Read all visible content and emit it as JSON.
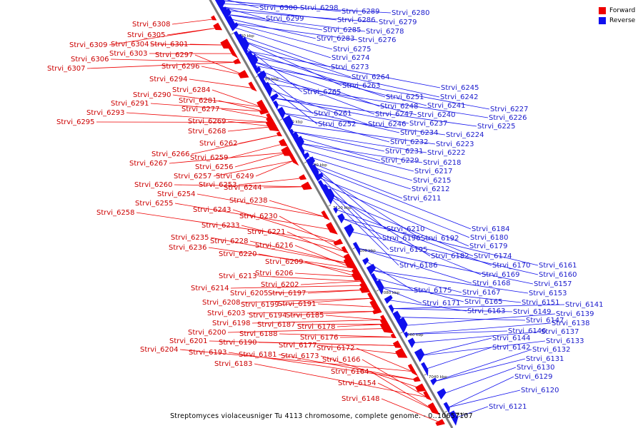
{
  "caption": "Streptomyces violaceusniger Tu 4113 chromosome, complete genome. - 0..10657107",
  "legend": [
    {
      "label": "Forward",
      "color": "#ee0000"
    },
    {
      "label": "Reverse",
      "color": "#1010ee"
    }
  ],
  "colors": {
    "forward": "#ee0000",
    "reverse": "#1010ee",
    "axis": "#7a7a7a"
  },
  "axis_ticks": [
    {
      "label": "7200 kbp",
      "pos": 0.085
    },
    {
      "label": "7180 kbp",
      "pos": 0.185
    },
    {
      "label": "7160 kbp",
      "pos": 0.285
    },
    {
      "label": "7140 kbp",
      "pos": 0.385
    },
    {
      "label": "7120 kbp",
      "pos": 0.485
    },
    {
      "label": "7100 kbp",
      "pos": 0.585
    },
    {
      "label": "7080 kbp",
      "pos": 0.683
    },
    {
      "label": "7060 kbp",
      "pos": 0.781
    },
    {
      "label": "7040 kbp",
      "pos": 0.879
    },
    {
      "label": "7020 kbp",
      "pos": 0.965
    }
  ],
  "forward_genes": [
    "Strvi_6308",
    "Strvi_6305",
    "Strvi_6309",
    "Strvi_6304",
    "Strvi_6301",
    "Strvi_6303",
    "Strvi_6306",
    "Strvi_6307",
    "Strvi_6297",
    "Strvi_6296",
    "Strvi_6294",
    "Strvi_6284",
    "Strvi_6290",
    "Strvi_6281",
    "Strvi_6291",
    "Strvi_6277",
    "Strvi_6293",
    "Strvi_6295",
    "Strvi_6269",
    "Strvi_6268",
    "Strvi_6262",
    "Strvi_6266",
    "Strvi_6259",
    "Strvi_6267",
    "Strvi_6256",
    "Strvi_6257",
    "Strvi_6249",
    "Strvi_6253",
    "Strvi_6260",
    "Strvi_6244",
    "Strvi_6254",
    "Strvi_6238",
    "Strvi_6255",
    "Strvi_6243",
    "Strvi_6258",
    "Strvi_6230",
    "Strvi_6233",
    "Strvi_6221",
    "Strvi_6235",
    "Strvi_6228",
    "Strvi_6216",
    "Strvi_6236",
    "Strvi_6220",
    "Strvi_6209",
    "Strvi_6206",
    "Strvi_6213",
    "Strvi_6202",
    "Strvi_6214",
    "Strvi_6205",
    "Strvi_6197",
    "Strvi_6208",
    "Strvi_6199",
    "Strvi_6191",
    "Strvi_6203",
    "Strvi_6194",
    "Strvi_6185",
    "Strvi_6198",
    "Strvi_6187",
    "Strvi_6178",
    "Strvi_6200",
    "Strvi_6188",
    "Strvi_6176",
    "Strvi_6201",
    "Strvi_6190",
    "Strvi_6177",
    "Strvi_6172",
    "Strvi_6204",
    "Strvi_6193",
    "Strvi_6181",
    "Strvi_6173",
    "Strvi_6166",
    "Strvi_6183",
    "Strvi_6164",
    "Strvi_6154",
    "Strvi_6148"
  ],
  "reverse_genes": [
    "Strvi_6300",
    "Strvi_6298",
    "Strvi_6289",
    "Strvi_6280",
    "Strvi_6299",
    "Strvi_6286",
    "Strvi_6279",
    "Strvi_6285",
    "Strvi_6278",
    "Strvi_6283",
    "Strvi_6276",
    "Strvi_6275",
    "Strvi_6274",
    "Strvi_6273",
    "Strvi_6264",
    "Strvi_6263",
    "Strvi_6265",
    "Strvi_6245",
    "Strvi_6251",
    "Strvi_6242",
    "Strvi_6248",
    "Strvi_6241",
    "Strvi_6227",
    "Strvi_6261",
    "Strvi_6247",
    "Strvi_6240",
    "Strvi_6226",
    "Strvi_6252",
    "Strvi_6246",
    "Strvi_6237",
    "Strvi_6225",
    "Strvi_6234",
    "Strvi_6224",
    "Strvi_6232",
    "Strvi_6223",
    "Strvi_6231",
    "Strvi_6222",
    "Strvi_6229",
    "Strvi_6218",
    "Strvi_6217",
    "Strvi_6215",
    "Strvi_6212",
    "Strvi_6211",
    "Strvi_6210",
    "Strvi_6184",
    "Strvi_6196",
    "Strvi_6192",
    "Strvi_6180",
    "Strvi_6179",
    "Strvi_6195",
    "Strvi_6182",
    "Strvi_6174",
    "Strvi_6186",
    "Strvi_6170",
    "Strvi_6161",
    "Strvi_6169",
    "Strvi_6160",
    "Strvi_6168",
    "Strvi_6157",
    "Strvi_6175",
    "Strvi_6167",
    "Strvi_6153",
    "Strvi_6165",
    "Strvi_6151",
    "Strvi_6171",
    "Strvi_6163",
    "Strvi_6149",
    "Strvi_6141",
    "Strvi_6147",
    "Strvi_6139",
    "Strvi_6138",
    "Strvi_6146",
    "Strvi_6137",
    "Strvi_6144",
    "Strvi_6133",
    "Strvi_6142",
    "Strvi_6132",
    "Strvi_6131",
    "Strvi_6130",
    "Strvi_6129",
    "Strvi_6120",
    "Strvi_6121"
  ]
}
